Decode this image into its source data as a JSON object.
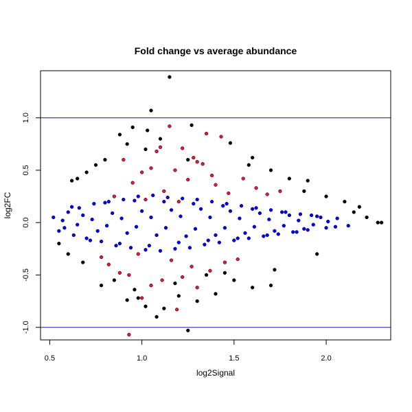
{
  "chart_data": {
    "type": "scatter",
    "title": "Fold change vs average abundance",
    "xlabel": "log2Signal",
    "ylabel": "log2FC",
    "xlim": [
      0.45,
      2.35
    ],
    "ylim": [
      -1.12,
      1.45
    ],
    "x_ticks": [
      0.5,
      1.0,
      1.5,
      2.0
    ],
    "x_tick_labels": [
      "0.5",
      "1.0",
      "1.5",
      "2.0"
    ],
    "y_ticks": [
      -1.0,
      -0.5,
      0.0,
      0.5,
      1.0
    ],
    "y_tick_labels": [
      "-1.0",
      "-0.5",
      "0.0",
      "0.5",
      "1.0"
    ],
    "grid": false,
    "legend": "none",
    "reference_lines": [
      {
        "axis": "y",
        "value": 1.0,
        "color": "#1a1aa6"
      },
      {
        "axis": "y",
        "value": -1.0,
        "color": "#1a1aa6"
      }
    ],
    "colors": {
      "black": "#000000",
      "blue": "#0000ff",
      "red": "#e2173a",
      "refline": "#1a1aa6"
    },
    "series": [
      {
        "color_key": "red",
        "x": [
          1.15,
          1.35,
          1.43,
          1.22,
          1.1,
          1.28,
          1.33,
          1.05,
          1.0,
          1.18,
          1.38,
          1.55,
          1.62,
          1.4,
          1.25,
          0.95,
          1.12,
          1.47,
          1.68,
          1.75,
          1.3,
          1.08,
          0.9,
          1.02,
          0.85,
          1.2,
          0.98,
          1.16,
          1.27,
          1.37,
          0.93,
          1.11,
          1.22,
          1.3,
          1.05,
          0.88,
          1.45,
          1.52,
          1.0,
          0.82,
          0.78,
          1.19,
          0.93
        ],
        "y": [
          0.92,
          0.85,
          0.82,
          0.71,
          0.72,
          0.62,
          0.56,
          0.52,
          0.48,
          0.5,
          0.45,
          0.42,
          0.33,
          0.36,
          0.41,
          0.38,
          0.3,
          0.28,
          0.27,
          0.3,
          0.58,
          0.68,
          0.6,
          0.22,
          0.25,
          0.2,
          -0.3,
          -0.36,
          -0.42,
          -0.46,
          -0.5,
          -0.55,
          -0.52,
          -0.62,
          -0.6,
          -0.48,
          -0.38,
          -0.35,
          -0.72,
          -0.4,
          -0.33,
          -0.83,
          -1.07
        ]
      },
      {
        "color_key": "blue",
        "x": [
          0.52,
          0.55,
          0.6,
          0.63,
          0.66,
          0.7,
          0.74,
          0.78,
          0.82,
          0.86,
          0.9,
          0.94,
          0.98,
          1.02,
          1.06,
          1.1,
          1.14,
          1.18,
          1.22,
          1.26,
          1.3,
          1.34,
          1.38,
          1.42,
          1.46,
          1.5,
          1.54,
          1.58,
          1.62,
          1.66,
          1.7,
          1.74,
          1.78,
          1.82,
          1.86,
          1.9,
          1.95,
          2.0,
          2.06,
          2.12,
          0.58,
          0.68,
          0.76,
          0.84,
          0.92,
          1.0,
          1.08,
          1.16,
          1.24,
          1.32,
          1.4,
          1.48,
          1.56,
          1.64,
          1.72,
          1.8,
          1.88,
          1.97,
          2.05,
          0.62,
          0.72,
          0.8,
          0.88,
          0.96,
          1.04,
          1.12,
          1.2,
          1.28,
          1.36,
          1.44,
          1.52,
          1.6,
          1.68,
          1.76,
          1.84,
          1.92,
          0.57,
          0.65,
          0.73,
          0.81,
          0.89,
          0.97,
          1.05,
          1.13,
          1.21,
          1.29,
          1.37,
          1.45,
          1.53,
          1.61,
          1.69,
          1.77,
          1.85,
          1.93,
          2.01
        ],
        "y": [
          0.05,
          -0.08,
          0.1,
          -0.12,
          0.14,
          -0.15,
          0.18,
          -0.18,
          0.2,
          -0.22,
          0.22,
          -0.24,
          0.25,
          -0.26,
          0.26,
          -0.27,
          0.24,
          -0.25,
          0.23,
          -0.24,
          0.22,
          -0.21,
          0.2,
          -0.19,
          0.18,
          -0.17,
          0.16,
          -0.15,
          0.14,
          -0.13,
          0.12,
          -0.11,
          0.1,
          -0.09,
          0.08,
          -0.07,
          0.06,
          -0.05,
          0.04,
          -0.03,
          -0.05,
          0.07,
          -0.08,
          0.09,
          -0.1,
          0.11,
          -0.12,
          0.12,
          -0.13,
          0.13,
          -0.12,
          0.11,
          -0.1,
          0.09,
          -0.08,
          0.07,
          -0.06,
          0.05,
          -0.04,
          0.15,
          -0.17,
          0.19,
          -0.2,
          0.21,
          -0.22,
          0.2,
          -0.19,
          0.18,
          -0.17,
          0.16,
          -0.15,
          0.13,
          -0.12,
          0.1,
          -0.09,
          0.07,
          0.02,
          -0.02,
          0.03,
          -0.03,
          0.04,
          -0.04,
          0.05,
          -0.05,
          0.06,
          -0.06,
          0.05,
          -0.05,
          0.04,
          -0.04,
          0.03,
          -0.03,
          0.02,
          -0.02,
          0.01
        ]
      },
      {
        "color_key": "black",
        "x": [
          1.15,
          1.05,
          0.95,
          1.27,
          1.03,
          0.88,
          0.92,
          1.1,
          1.02,
          1.48,
          1.6,
          1.58,
          1.7,
          1.8,
          1.9,
          0.8,
          0.75,
          0.7,
          0.65,
          0.62,
          1.25,
          2.15,
          2.22,
          2.28,
          2.3,
          1.7,
          1.6,
          0.78,
          0.85,
          0.98,
          1.2,
          1.4,
          1.3,
          1.12,
          1.02,
          0.92,
          1.08,
          1.25,
          1.5,
          1.72,
          1.95,
          0.55,
          0.6,
          0.68,
          1.88,
          2.0,
          2.1,
          2.18,
          1.35,
          1.45,
          0.96,
          1.18
        ],
        "y": [
          1.39,
          1.07,
          0.91,
          0.93,
          0.88,
          0.84,
          0.75,
          0.8,
          0.7,
          0.76,
          0.62,
          0.55,
          0.5,
          0.42,
          0.4,
          0.6,
          0.55,
          0.48,
          0.42,
          0.4,
          0.6,
          0.1,
          0.05,
          0.0,
          0.0,
          -0.6,
          -0.62,
          -0.6,
          -0.55,
          -0.72,
          -0.7,
          -0.68,
          -0.75,
          -0.82,
          -0.8,
          -0.74,
          -0.9,
          -1.03,
          -0.55,
          -0.45,
          -0.3,
          -0.2,
          -0.3,
          -0.38,
          0.3,
          0.25,
          0.2,
          0.15,
          -0.5,
          -0.48,
          -0.64,
          -0.58
        ]
      }
    ]
  }
}
